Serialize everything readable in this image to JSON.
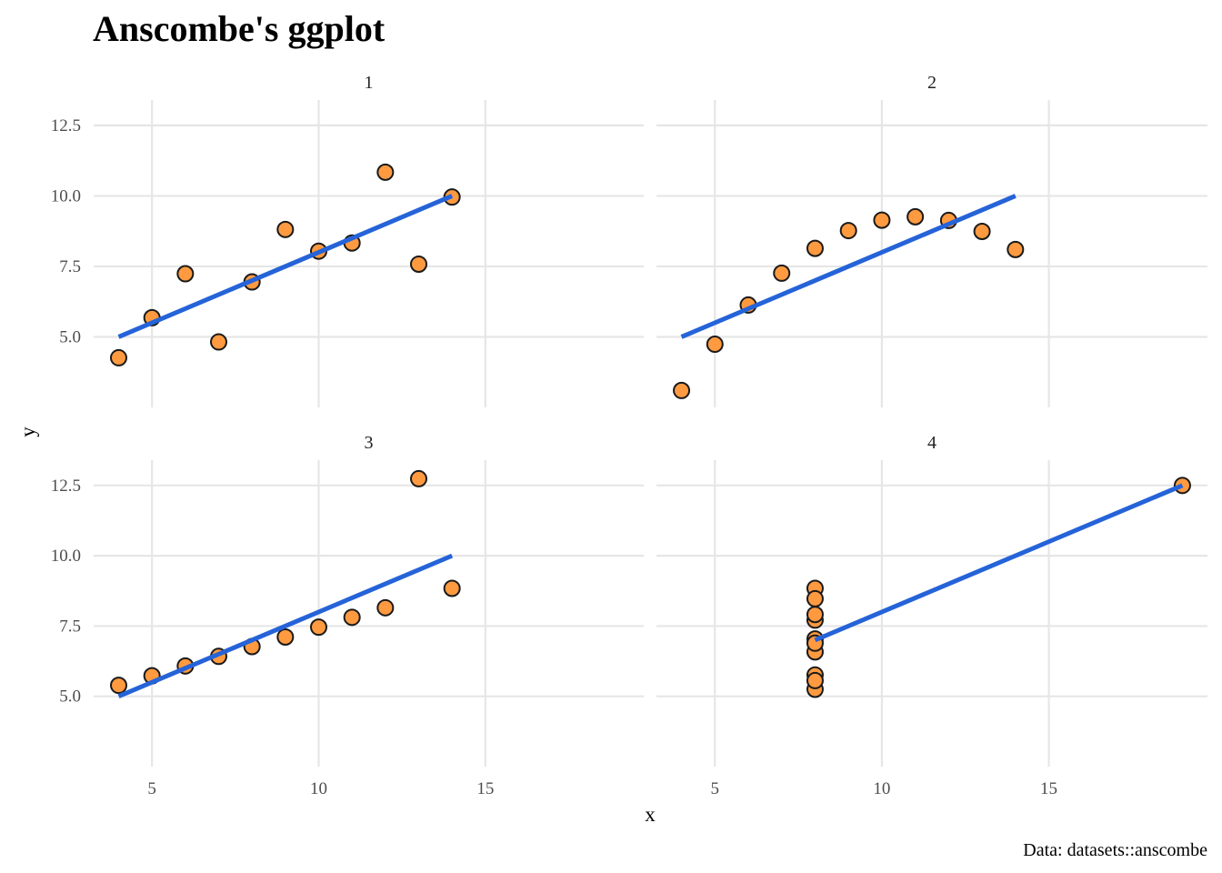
{
  "chart_data": {
    "type": "scatter",
    "title": "Anscombe's ggplot",
    "caption": "Data: datasets::anscombe",
    "xlabel": "x",
    "ylabel": "y",
    "xlim": [
      3.25,
      19.75
    ],
    "ylim": [
      2.5,
      13.4
    ],
    "x_ticks": [
      5,
      10,
      15
    ],
    "y_ticks": [
      5.0,
      7.5,
      10.0,
      12.5
    ],
    "y_tick_labels": [
      "5.0",
      "7.5",
      "10.0",
      "12.5"
    ],
    "x_tick_labels": [
      "5",
      "10",
      "15"
    ],
    "point_color": "#ff9a40",
    "line_color": "#2563d8",
    "grid": true,
    "panels": [
      {
        "label": "1",
        "x": [
          10,
          8,
          13,
          9,
          11,
          14,
          6,
          4,
          12,
          7,
          5
        ],
        "y": [
          8.04,
          6.95,
          7.58,
          8.81,
          8.33,
          9.96,
          7.24,
          4.26,
          10.84,
          4.82,
          5.68
        ],
        "fit": {
          "x": [
            4,
            14
          ],
          "y": [
            5.0,
            10.0
          ]
        }
      },
      {
        "label": "2",
        "x": [
          10,
          8,
          13,
          9,
          11,
          14,
          6,
          4,
          12,
          7,
          5
        ],
        "y": [
          9.14,
          8.14,
          8.74,
          8.77,
          9.26,
          8.1,
          6.13,
          3.1,
          9.13,
          7.26,
          4.74
        ],
        "fit": {
          "x": [
            4,
            14
          ],
          "y": [
            5.0,
            10.0
          ]
        }
      },
      {
        "label": "3",
        "x": [
          10,
          8,
          13,
          9,
          11,
          14,
          6,
          4,
          12,
          7,
          5
        ],
        "y": [
          7.46,
          6.77,
          12.74,
          7.11,
          7.81,
          8.84,
          6.08,
          5.39,
          8.15,
          6.42,
          5.73
        ],
        "fit": {
          "x": [
            4,
            14
          ],
          "y": [
            5.0,
            10.0
          ]
        }
      },
      {
        "label": "4",
        "x": [
          8,
          8,
          8,
          8,
          8,
          8,
          8,
          19,
          8,
          8,
          8
        ],
        "y": [
          6.58,
          5.76,
          7.71,
          8.84,
          8.47,
          7.04,
          5.25,
          12.5,
          5.56,
          7.91,
          6.89
        ],
        "fit": {
          "x": [
            8,
            19
          ],
          "y": [
            7.0,
            12.5
          ]
        }
      }
    ]
  }
}
